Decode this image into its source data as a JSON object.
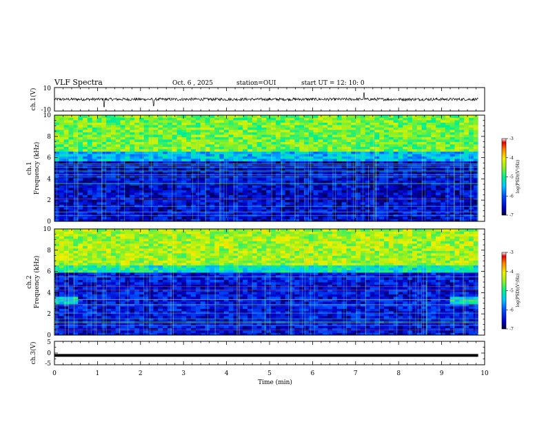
{
  "header": {
    "title": "VLF Spectra",
    "date": "Oct. 6 , 2025",
    "station": "station=OUI",
    "start_ut": "start UT =  12: 10: 0"
  },
  "chart_data": [
    {
      "type": "line",
      "panel": "ch1-waveform",
      "ylabel": "ch.1(V)",
      "y_ticks": [
        "10",
        "-10"
      ],
      "ylim": [
        -10,
        10
      ],
      "xlim": [
        0,
        10
      ],
      "x_ticks": [
        0,
        1,
        2,
        3,
        4,
        5,
        6,
        7,
        8,
        9,
        10
      ],
      "baseline": 0,
      "noise_amplitude": 1.2,
      "spikes": [
        {
          "t": 1.15,
          "v": -6.5
        },
        {
          "t": 2.3,
          "v": -5.5
        },
        {
          "t": 7.2,
          "v": 5.5
        }
      ],
      "series_end_min": 9.85
    },
    {
      "type": "heatmap",
      "panel": "ch1-spectrogram",
      "ylabel": "ch.1\nFrequency  (kHz)",
      "y_ticks": [
        "0",
        "2",
        "4",
        "6",
        "8",
        "10"
      ],
      "ylim": [
        0,
        10
      ],
      "xlim": [
        0,
        10
      ],
      "value_range": [
        -7,
        -3
      ],
      "colorbar": {
        "label": "log(PSD)(V²/Hz)",
        "ticks": [
          "-3",
          "-4",
          "-5",
          "-6",
          "-7"
        ]
      },
      "bands": [
        {
          "f_from": 6.6,
          "f_to": 10,
          "level": -4.6
        },
        {
          "f_from": 5.6,
          "f_to": 6.6,
          "level": -5.5
        },
        {
          "f_from": 0,
          "f_to": 5.6,
          "level": -6.5
        }
      ]
    },
    {
      "type": "heatmap",
      "panel": "ch2-spectrogram",
      "ylabel": "ch.2\nFrequency  (kHz)",
      "y_ticks": [
        "0",
        "2",
        "4",
        "6",
        "8",
        "10"
      ],
      "ylim": [
        0,
        10
      ],
      "xlim": [
        0,
        10
      ],
      "value_range": [
        -7,
        -3
      ],
      "colorbar": {
        "label": "log(PSD)(V²/Hz)",
        "ticks": [
          "-3",
          "-4",
          "-5",
          "-6",
          "-7"
        ]
      },
      "bands": [
        {
          "f_from": 6.6,
          "f_to": 10,
          "level": -4.4
        },
        {
          "f_from": 5.8,
          "f_to": 6.6,
          "level": -5.2
        },
        {
          "f_from": 0,
          "f_to": 5.8,
          "level": -6.4
        }
      ],
      "patches": [
        {
          "t_from": 0.0,
          "t_to": 0.6,
          "f_from": 2.9,
          "f_to": 3.6,
          "level": -5.2
        },
        {
          "t_from": 9.15,
          "t_to": 9.85,
          "f_from": 2.9,
          "f_to": 3.6,
          "level": -5.2
        },
        {
          "t_from": 0.0,
          "t_to": 2.15,
          "f_from": 6.0,
          "f_to": 6.6,
          "level": -5.0
        }
      ]
    },
    {
      "type": "line",
      "panel": "ch3-waveform",
      "ylabel": "ch.3(V)",
      "y_ticks": [
        "5",
        "0",
        "-5"
      ],
      "ylim": [
        -5,
        5
      ],
      "xlim": [
        0,
        10
      ],
      "baseline": -1.0,
      "series_end_min": 9.85
    }
  ],
  "x_axis": {
    "label": "Time  (min)",
    "ticks": [
      "0",
      "1",
      "2",
      "3",
      "4",
      "5",
      "6",
      "7",
      "8",
      "9",
      "10"
    ]
  },
  "colors": {
    "background": "#ffffff",
    "axis": "#000000",
    "trace": "#000000"
  }
}
